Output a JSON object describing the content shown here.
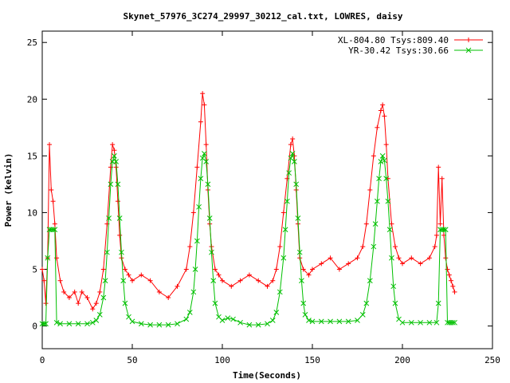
{
  "chart_data": {
    "type": "line",
    "title": "Skynet_57976_3C274_29997_30212_cal.txt, LOWRES, daisy",
    "xlabel": "Time(Seconds)",
    "ylabel": "Power (kelvin)",
    "xlim": [
      0,
      250
    ],
    "ylim": [
      -2,
      26
    ],
    "xticks": [
      "0",
      "50",
      "100",
      "150",
      "200",
      "250"
    ],
    "yticks": [
      "0",
      "5",
      "10",
      "15",
      "20",
      "25"
    ],
    "grid": false,
    "legend_position": "top-right",
    "series": [
      {
        "name": "XL-804.80 Tsys:809.40",
        "color": "#ff0000",
        "marker": "plus",
        "x": [
          0,
          1,
          2,
          3,
          4,
          5,
          6,
          7,
          8,
          10,
          12,
          15,
          18,
          20,
          22,
          25,
          28,
          30,
          32,
          34,
          36,
          38,
          39,
          40,
          41,
          42,
          43,
          44,
          46,
          48,
          50,
          55,
          60,
          65,
          70,
          75,
          80,
          82,
          84,
          86,
          88,
          89,
          90,
          91,
          92,
          93,
          94,
          96,
          98,
          100,
          105,
          110,
          115,
          120,
          125,
          128,
          130,
          132,
          134,
          136,
          138,
          139,
          140,
          141,
          142,
          143,
          145,
          148,
          150,
          155,
          160,
          165,
          170,
          175,
          178,
          180,
          182,
          184,
          186,
          188,
          189,
          190,
          191,
          192,
          194,
          196,
          198,
          200,
          205,
          210,
          215,
          218,
          219,
          220,
          221,
          222,
          223,
          224,
          225,
          226,
          227,
          228,
          229
        ],
        "y": [
          5.0,
          4.0,
          2.0,
          6.0,
          16.0,
          12.0,
          11.0,
          9.0,
          6.0,
          4.0,
          3.0,
          2.5,
          3.0,
          2.0,
          3.0,
          2.5,
          1.5,
          2.0,
          3.0,
          5.0,
          9.0,
          14.0,
          16.0,
          15.5,
          14.0,
          11.0,
          8.0,
          6.0,
          5.0,
          4.5,
          4.0,
          4.5,
          4.0,
          3.0,
          2.5,
          3.5,
          5.0,
          7.0,
          10.0,
          14.0,
          18.0,
          20.5,
          19.5,
          16.0,
          12.0,
          9.0,
          7.0,
          5.0,
          4.5,
          4.0,
          3.5,
          4.0,
          4.5,
          4.0,
          3.5,
          4.0,
          5.0,
          7.0,
          10.0,
          13.0,
          16.0,
          16.5,
          15.0,
          12.0,
          9.0,
          6.0,
          5.0,
          4.5,
          5.0,
          5.5,
          6.0,
          5.0,
          5.5,
          6.0,
          7.0,
          9.0,
          12.0,
          15.0,
          17.5,
          19.0,
          19.5,
          18.5,
          16.0,
          13.0,
          9.0,
          7.0,
          6.0,
          5.5,
          6.0,
          5.5,
          6.0,
          7.0,
          8.0,
          14.0,
          9.0,
          13.0,
          8.0,
          6.0,
          5.0,
          4.5,
          4.0,
          3.5,
          3.0
        ]
      },
      {
        "name": "YR-30.42 Tsys:30.66",
        "color": "#00c000",
        "marker": "cross",
        "x": [
          0,
          1,
          2,
          3,
          4,
          5,
          6,
          7,
          8,
          10,
          15,
          20,
          25,
          28,
          30,
          32,
          34,
          35,
          36,
          37,
          38,
          39,
          40,
          41,
          42,
          43,
          44,
          45,
          46,
          48,
          50,
          55,
          60,
          65,
          70,
          75,
          80,
          82,
          84,
          85,
          86,
          87,
          88,
          89,
          90,
          91,
          92,
          93,
          94,
          95,
          96,
          98,
          100,
          103,
          106,
          110,
          115,
          120,
          125,
          128,
          130,
          132,
          134,
          135,
          136,
          137,
          138,
          139,
          140,
          141,
          142,
          143,
          144,
          145,
          146,
          148,
          150,
          155,
          160,
          165,
          170,
          175,
          178,
          180,
          182,
          184,
          185,
          186,
          187,
          188,
          189,
          190,
          191,
          192,
          193,
          194,
          195,
          196,
          198,
          200,
          205,
          210,
          215,
          219,
          220,
          221,
          222,
          223,
          224,
          225,
          226,
          227,
          228,
          229
        ],
        "y": [
          0.2,
          0.2,
          0.2,
          6.0,
          8.5,
          8.5,
          8.5,
          8.5,
          0.3,
          0.2,
          0.2,
          0.2,
          0.2,
          0.3,
          0.5,
          1.0,
          2.5,
          4.0,
          6.5,
          9.5,
          12.5,
          14.5,
          15.0,
          14.5,
          12.5,
          9.5,
          6.5,
          4.0,
          2.0,
          0.8,
          0.4,
          0.2,
          0.1,
          0.1,
          0.1,
          0.2,
          0.6,
          1.2,
          3.0,
          5.0,
          7.5,
          10.5,
          13.0,
          14.8,
          15.2,
          14.5,
          12.5,
          9.5,
          6.5,
          4.0,
          2.0,
          0.8,
          0.5,
          0.7,
          0.6,
          0.3,
          0.1,
          0.1,
          0.2,
          0.5,
          1.2,
          3.0,
          6.0,
          8.5,
          11.0,
          13.5,
          14.8,
          15.2,
          14.5,
          12.5,
          9.5,
          6.5,
          4.0,
          2.0,
          1.0,
          0.5,
          0.4,
          0.4,
          0.4,
          0.4,
          0.4,
          0.5,
          1.0,
          2.0,
          4.0,
          7.0,
          9.0,
          11.0,
          13.0,
          14.5,
          15.0,
          14.6,
          13.0,
          11.0,
          8.5,
          6.0,
          3.5,
          2.0,
          0.6,
          0.3,
          0.3,
          0.3,
          0.3,
          0.3,
          2.0,
          8.5,
          8.5,
          8.5,
          8.5,
          0.3,
          0.3,
          0.3,
          0.3,
          0.3
        ]
      }
    ]
  }
}
